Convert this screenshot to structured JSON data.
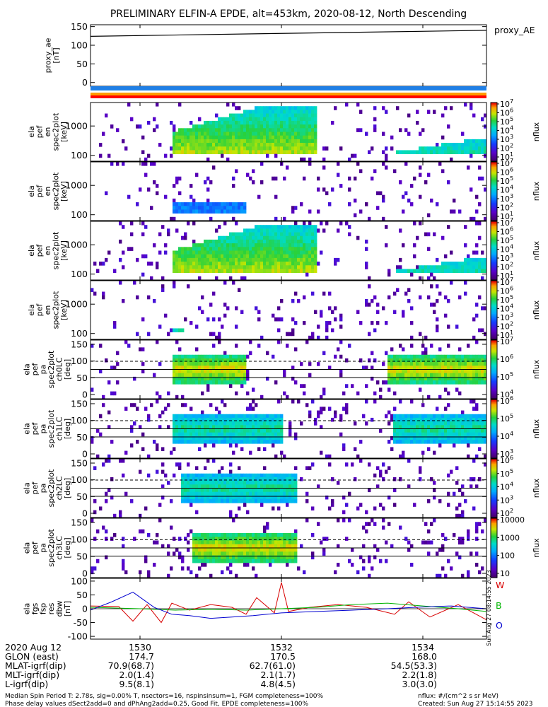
{
  "title": "PRELIMINARY ELFIN-A EPDE, alt=453km, 2020-08-12, North Descending",
  "colors": {
    "component_w": "#d80000",
    "component_b": "#00b400",
    "component_o": "#0000d0",
    "bar_blue": "#1f7fe6",
    "bar_orange": "#ff9900",
    "bar_red": "#ff0000"
  },
  "chart_data": [
    {
      "type": "line",
      "panel": "proxy_ae",
      "ylabel": "proxy_ae\n[nT]",
      "legend": [
        "proxy_AE"
      ],
      "ylim": [
        -10,
        155
      ],
      "yticks": [
        "150",
        "100",
        "50",
        "0"
      ],
      "series": [
        {
          "name": "proxy_AE",
          "x": [
            1529.3,
            1534.9
          ],
          "y": [
            124,
            140
          ]
        }
      ]
    },
    {
      "type": "heatmap",
      "panel": "en_spec_0",
      "ylabel": "ela\npef\nen\nspec2plot\n[keV]",
      "yticks": [
        "1000",
        "100"
      ],
      "scale": "log",
      "colorbar": {
        "label": "nflux",
        "ticks": [
          "10^7",
          "10^6",
          "10^5",
          "10^4",
          "10^3",
          "10^2",
          "10^1"
        ]
      },
      "features": [
        {
          "x": [
            1530.45,
            1532.5
          ],
          "y_keV": [
            90,
            3000
          ],
          "level": "high",
          "desc": "broad high flux band"
        },
        {
          "x": [
            1533.5,
            1534.9
          ],
          "y_keV": [
            90,
            300
          ],
          "level": "medium",
          "desc": "rising tail"
        }
      ]
    },
    {
      "type": "heatmap",
      "panel": "en_spec_1",
      "ylabel": "ela\npef\nen\nspec2plot\n[keV]",
      "yticks": [
        "1000",
        "100"
      ],
      "scale": "log",
      "colorbar": {
        "label": "nflux",
        "ticks": [
          "10^7",
          "10^6",
          "10^5",
          "10^4",
          "10^3",
          "10^2",
          "10^1"
        ]
      },
      "features": [
        {
          "x": [
            1530.45,
            1531.5
          ],
          "y_keV": [
            90,
            200
          ],
          "level": "low",
          "desc": "weak low-energy flux"
        }
      ]
    },
    {
      "type": "heatmap",
      "panel": "en_spec_2",
      "ylabel": "ela\npef\nen\nspec2plot\n[keV]",
      "yticks": [
        "1000",
        "100"
      ],
      "scale": "log",
      "colorbar": {
        "label": "nflux",
        "ticks": [
          "10^7",
          "10^6",
          "10^5",
          "10^4",
          "10^3",
          "10^2",
          "10^1"
        ]
      },
      "features": [
        {
          "x": [
            1530.45,
            1532.5
          ],
          "y_keV": [
            90,
            3000
          ],
          "level": "high",
          "desc": "broad high flux band"
        },
        {
          "x": [
            1533.5,
            1534.9
          ],
          "y_keV": [
            90,
            300
          ],
          "level": "medium",
          "desc": "rising tail"
        }
      ]
    },
    {
      "type": "heatmap",
      "panel": "en_spec_3",
      "ylabel": "ela\npef\nen\nspec2plot\n[keV]",
      "yticks": [
        "1000",
        "100"
      ],
      "scale": "log",
      "colorbar": {
        "label": "nflux",
        "ticks": [
          "10^7",
          "10^6",
          "10^5",
          "10^4",
          "10^3",
          "10^2",
          "10^1"
        ]
      },
      "features": [
        {
          "x": [
            1530.45,
            1530.6
          ],
          "y_keV": [
            90,
            130
          ],
          "level": "medium",
          "desc": "low energy burst"
        }
      ]
    },
    {
      "type": "heatmap",
      "panel": "pa_spec_ch0",
      "ylabel": "ela\npef\npa\nspec2plot\nch0LC\n[deg]",
      "yticks": [
        "150",
        "100",
        "50",
        "0"
      ],
      "ylim": [
        0,
        180
      ],
      "colorbar": {
        "label": "nflux",
        "ticks": [
          "10^7",
          "10^6",
          "10^5",
          "10^4"
        ]
      },
      "features": [
        {
          "x": [
            1530.45,
            1531.5
          ],
          "y_deg": [
            40,
            140
          ],
          "level": "high"
        },
        {
          "x": [
            1533.5,
            1534.9
          ],
          "y_deg": [
            40,
            140
          ],
          "level": "high"
        }
      ]
    },
    {
      "type": "heatmap",
      "panel": "pa_spec_ch1",
      "ylabel": "ela\npef\npa\nspec2plot\nch1LC\n[deg]",
      "yticks": [
        "150",
        "100",
        "50",
        "0"
      ],
      "ylim": [
        0,
        180
      ],
      "colorbar": {
        "label": "nflux",
        "ticks": [
          "10^6",
          "10^5",
          "10^4",
          "10^3"
        ]
      },
      "features": [
        {
          "x": [
            1530.45,
            1532.0
          ],
          "y_deg": [
            40,
            140
          ],
          "level": "medium"
        },
        {
          "x": [
            1533.6,
            1534.9
          ],
          "y_deg": [
            40,
            140
          ],
          "level": "medium"
        }
      ]
    },
    {
      "type": "heatmap",
      "panel": "pa_spec_ch2",
      "ylabel": "ela\npef\npa\nspec2plot\nch2LC\n[deg]",
      "yticks": [
        "150",
        "100",
        "50",
        "0"
      ],
      "ylim": [
        0,
        180
      ],
      "colorbar": {
        "label": "nflux",
        "ticks": [
          "10^6",
          "10^5",
          "10^4",
          "10^3",
          "10^2"
        ]
      },
      "features": [
        {
          "x": [
            1530.6,
            1532.2
          ],
          "y_deg": [
            40,
            140
          ],
          "level": "medium"
        }
      ]
    },
    {
      "type": "heatmap",
      "panel": "pa_spec_ch3",
      "ylabel": "ela\npef\npa\nspec2plot\nch3LC\n[deg]",
      "yticks": [
        "150",
        "100",
        "50",
        "0"
      ],
      "ylim": [
        0,
        180
      ],
      "colorbar": {
        "label": "nflux",
        "ticks": [
          "10000",
          "1000",
          "100",
          "10"
        ]
      },
      "features": [
        {
          "x": [
            1530.75,
            1532.2
          ],
          "y_deg": [
            40,
            140
          ],
          "level": "high"
        }
      ]
    },
    {
      "type": "line",
      "panel": "fgs_res",
      "ylabel": "ela\nfgs\nfsp\nres\ndbw\n[nT]",
      "ylim": [
        -110,
        110
      ],
      "yticks": [
        "100",
        "50",
        "0",
        "-50",
        "-100"
      ],
      "legend": [
        "W",
        "B",
        "O"
      ],
      "series": [
        {
          "name": "W",
          "x": [
            1529.3,
            1529.7,
            1529.9,
            1530.1,
            1530.3,
            1530.45,
            1530.7,
            1531.0,
            1531.3,
            1531.5,
            1531.65,
            1531.9,
            1532.0,
            1532.1,
            1532.4,
            1532.8,
            1533.2,
            1533.6,
            1533.8,
            1534.1,
            1534.5,
            1534.9
          ],
          "y": [
            10,
            8,
            -45,
            15,
            -50,
            20,
            -5,
            15,
            5,
            -20,
            40,
            -15,
            95,
            -10,
            5,
            15,
            5,
            -20,
            25,
            -30,
            15,
            -40
          ]
        },
        {
          "name": "B",
          "x": [
            1529.3,
            1530.0,
            1530.5,
            1531.0,
            1531.5,
            1532.0,
            1532.5,
            1533.0,
            1533.5,
            1534.0,
            1534.5,
            1534.9
          ],
          "y": [
            5,
            0,
            -5,
            -2,
            -5,
            0,
            5,
            15,
            20,
            10,
            0,
            -10
          ]
        },
        {
          "name": "O",
          "x": [
            1529.3,
            1529.6,
            1529.9,
            1530.2,
            1530.45,
            1530.7,
            1531.0,
            1531.3,
            1531.6,
            1532.0,
            1532.5,
            1533.0,
            1533.5,
            1533.9,
            1534.4,
            1534.9
          ],
          "y": [
            -5,
            25,
            60,
            5,
            -20,
            -25,
            -35,
            -30,
            -25,
            -15,
            -10,
            -5,
            0,
            5,
            10,
            0
          ]
        }
      ]
    }
  ],
  "xaxis": {
    "tick_labels": [
      "1530",
      "1532",
      "1534"
    ],
    "rows": [
      {
        "label": "2020 Aug 12",
        "values": [
          "1530",
          "1532",
          "1534"
        ]
      },
      {
        "label": "GLON (east)",
        "values": [
          "174.7",
          "170.5",
          "168.0"
        ]
      },
      {
        "label": "MLAT-igrf(dip)",
        "values": [
          "70.9(68.7)",
          "62.7(61.0)",
          "54.5(53.3)"
        ]
      },
      {
        "label": "MLT-igrf(dip)",
        "values": [
          "2.0(1.4)",
          "2.1(1.7)",
          "2.2(1.8)"
        ]
      },
      {
        "label": "L-igrf(dip)",
        "values": [
          "9.5(8.1)",
          "4.8(4.5)",
          "3.0(3.0)"
        ]
      }
    ]
  },
  "footer": {
    "left_line1": "Median Spin Period T: 2.78s, sig=0.00% T, nsectors=16, nspinsinsum=1, FGM completeness=100%",
    "left_line2": "Phase delay values dSect2add=0 and dPhAng2add=0.25, Good Fit, EPDE completeness=100%",
    "right_line1": "nflux: #/(cm^2 s sr MeV)",
    "right_line2": "Created: Sun Aug 27 15:14:55 2023",
    "side_stamp": "Sun Aug 27 08:14:55 2023"
  }
}
